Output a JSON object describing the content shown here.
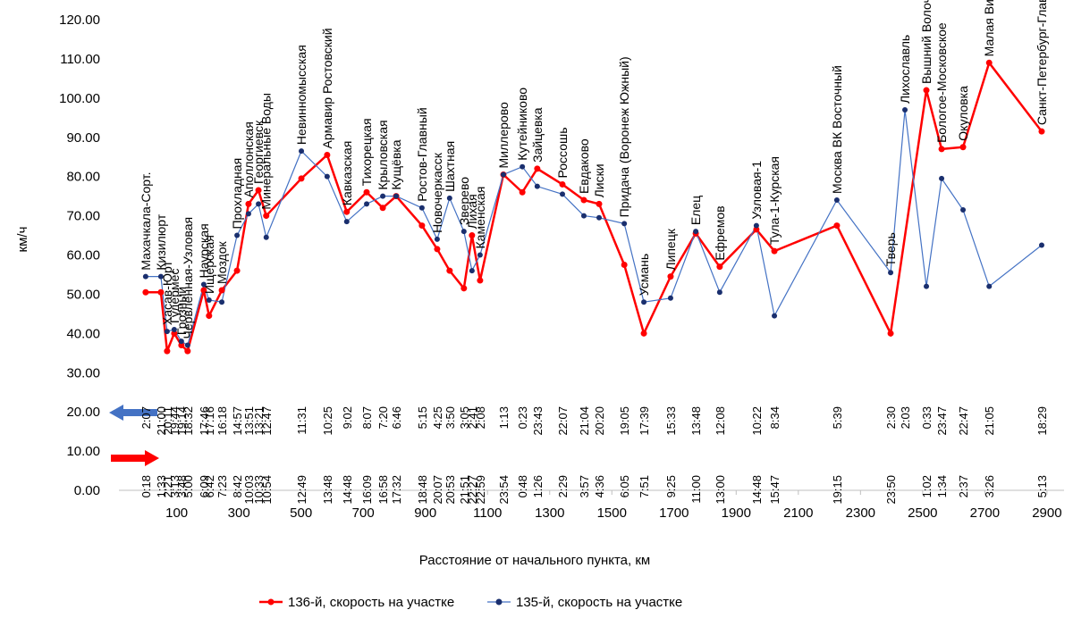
{
  "chart_data": {
    "type": "line",
    "y_label": "км/ч",
    "x_label": "Расстояние от начального пункта, км",
    "xlim": [
      -86,
      2955
    ],
    "ylim": [
      0,
      120
    ],
    "xticks": [
      100,
      300,
      500,
      700,
      900,
      1100,
      1300,
      1500,
      1700,
      1900,
      2100,
      2300,
      2500,
      2700,
      2900
    ],
    "yticks": [
      {
        "value": 0,
        "label": "0.00"
      },
      {
        "value": 10,
        "label": "10.00"
      },
      {
        "value": 20,
        "label": "20.00"
      },
      {
        "value": 30,
        "label": "30.00"
      },
      {
        "value": 40,
        "label": "40.00"
      },
      {
        "value": 50,
        "label": "50.00"
      },
      {
        "value": 60,
        "label": "60.00"
      },
      {
        "value": 70,
        "label": "70.00"
      },
      {
        "value": 80,
        "label": "80.00"
      },
      {
        "value": 90,
        "label": "90.00"
      },
      {
        "value": 100,
        "label": "100.00"
      },
      {
        "value": 110,
        "label": "110.00"
      },
      {
        "value": 120,
        "label": "120.00"
      }
    ],
    "x": [
      0,
      49,
      69,
      92,
      115,
      135,
      187,
      204,
      245,
      294,
      331,
      363,
      388,
      501,
      584,
      647,
      711,
      763,
      806,
      889,
      938,
      978,
      1024,
      1050,
      1076,
      1151,
      1212,
      1260,
      1341,
      1410,
      1459,
      1540,
      1603,
      1689,
      1770,
      1847,
      1965,
      2023,
      2224,
      2397,
      2443,
      2512,
      2561,
      2630,
      2714,
      2883
    ],
    "station_names": [
      "Махачкала-Сорт.",
      "Кизилюрт",
      "Хасав-Юрт",
      "Гудермес",
      "Грозный",
      "Червлённая-Узловая",
      "Наурская",
      "Ищерская",
      "Моздок",
      "Прохладная",
      "Аполлонская",
      "Георгиевск",
      "Минеральные Воды",
      "Невинномысская",
      "Армавир Ростовский",
      "Кавказская",
      "Тихорецкая",
      "Крыловская",
      "Кущёвка",
      "Ростов-Главный",
      "Новочеркасск",
      "Шахтная",
      "Зверево",
      "Лихая",
      "Каменская",
      "Миллерово",
      "Кутейниково",
      "Зайцевка",
      "Россошь",
      "Евдаково",
      "Лиски",
      "Придача (Воронеж Южный)",
      "Усмань",
      "Липецк",
      "Елец",
      "Ефремов",
      "Узловая-1",
      "Тула-1-Курская",
      "Москва ВК Восточный",
      "Тверь",
      "Лихославль",
      "Вышний Волочёк",
      "Бологое-Московское",
      "Окуловка",
      "Малая Вишера",
      "Санкт-Петербург-Главн."
    ],
    "series": [
      {
        "name": "136-й, скорость на участке",
        "color": "#ff0000",
        "marker_color": "#ff0000",
        "x": [
          0,
          49,
          69,
          92,
          115,
          135,
          187,
          204,
          245,
          294,
          331,
          363,
          388,
          501,
          584,
          647,
          711,
          763,
          806,
          889,
          938,
          978,
          1024,
          1050,
          1076,
          1151,
          1212,
          1260,
          1341,
          1410,
          1459,
          1540,
          1603,
          1689,
          1770,
          1847,
          1965,
          2023,
          2224,
          2397,
          2512,
          2561,
          2630,
          2714,
          2883
        ],
        "values": [
          50.5,
          50.5,
          35.5,
          40,
          37,
          35.5,
          51,
          44.5,
          51,
          56,
          73,
          76.5,
          70,
          79.5,
          85.5,
          71,
          76,
          72,
          75,
          67.5,
          61.5,
          56,
          51.5,
          65,
          53.5,
          80.5,
          76,
          82,
          78,
          74,
          73,
          57.5,
          40,
          54.5,
          65.5,
          57,
          66.5,
          61,
          67.5,
          40,
          102,
          87,
          87.5,
          109,
          91.5
        ],
        "times": [
          "0:18",
          "1:33",
          "2:21",
          "3:13",
          "3:48",
          "5:00",
          "6:09",
          "6:42",
          "7:23",
          "8:42",
          "10:03",
          "10:33",
          "10:54",
          "12:49",
          "13:48",
          "14:48",
          "16:09",
          "16:58",
          "17:32",
          "18:48",
          "20:07",
          "20:53",
          "21:51",
          "22:27",
          "22:59",
          "23:54",
          "0:48",
          "1:26",
          "2:29",
          "3:57",
          "4:36",
          "6:05",
          "7:51",
          "9:25",
          "11:00",
          "13:00",
          "14:48",
          "15:47",
          "19:15",
          "23:50",
          "1:02",
          "1:34",
          "2:37",
          "3:26",
          "5:13"
        ]
      },
      {
        "name": "135-й, скорость на участке",
        "color": "#4472c4",
        "marker_color": "#1a2f6e",
        "x": [
          0,
          49,
          69,
          92,
          115,
          135,
          187,
          204,
          245,
          294,
          331,
          363,
          388,
          501,
          584,
          647,
          711,
          763,
          806,
          889,
          938,
          978,
          1024,
          1050,
          1076,
          1151,
          1212,
          1260,
          1341,
          1410,
          1459,
          1540,
          1603,
          1689,
          1770,
          1847,
          1965,
          2023,
          2224,
          2397,
          2443,
          2512,
          2561,
          2630,
          2714,
          2883
        ],
        "values": [
          54.5,
          54.5,
          40.5,
          41,
          38,
          37,
          52.5,
          48.5,
          48,
          65,
          70.5,
          73,
          64.5,
          86.5,
          80,
          68.5,
          73,
          75,
          75,
          72,
          64,
          74.5,
          66,
          56,
          60,
          80.5,
          82.5,
          77.5,
          75.5,
          70,
          69.5,
          68,
          48,
          49,
          66,
          50.5,
          67.5,
          44.5,
          74,
          55.5,
          97,
          52,
          79.5,
          71.5,
          52,
          62.5
        ],
        "times": [
          "2:07",
          "21:00",
          "20:11",
          "19:44",
          "19:14",
          "18:32",
          "17:46",
          "17:16",
          "16:18",
          "14:57",
          "13:51",
          "13:21",
          "12:47",
          "11:31",
          "10:25",
          "9:02",
          "8:07",
          "7:20",
          "6:46",
          "5:15",
          "4:25",
          "3:50",
          "3:05",
          "2:41",
          "2:08",
          "1:13",
          "0:23",
          "23:43",
          "22:07",
          "21:04",
          "20:20",
          "19:05",
          "17:39",
          "15:33",
          "13:48",
          "12:08",
          "10:22",
          "8:34",
          "5:39",
          "2:30",
          "2:03",
          "0:33",
          "23:47",
          "22:47",
          "21:05",
          "18:29"
        ]
      }
    ]
  }
}
